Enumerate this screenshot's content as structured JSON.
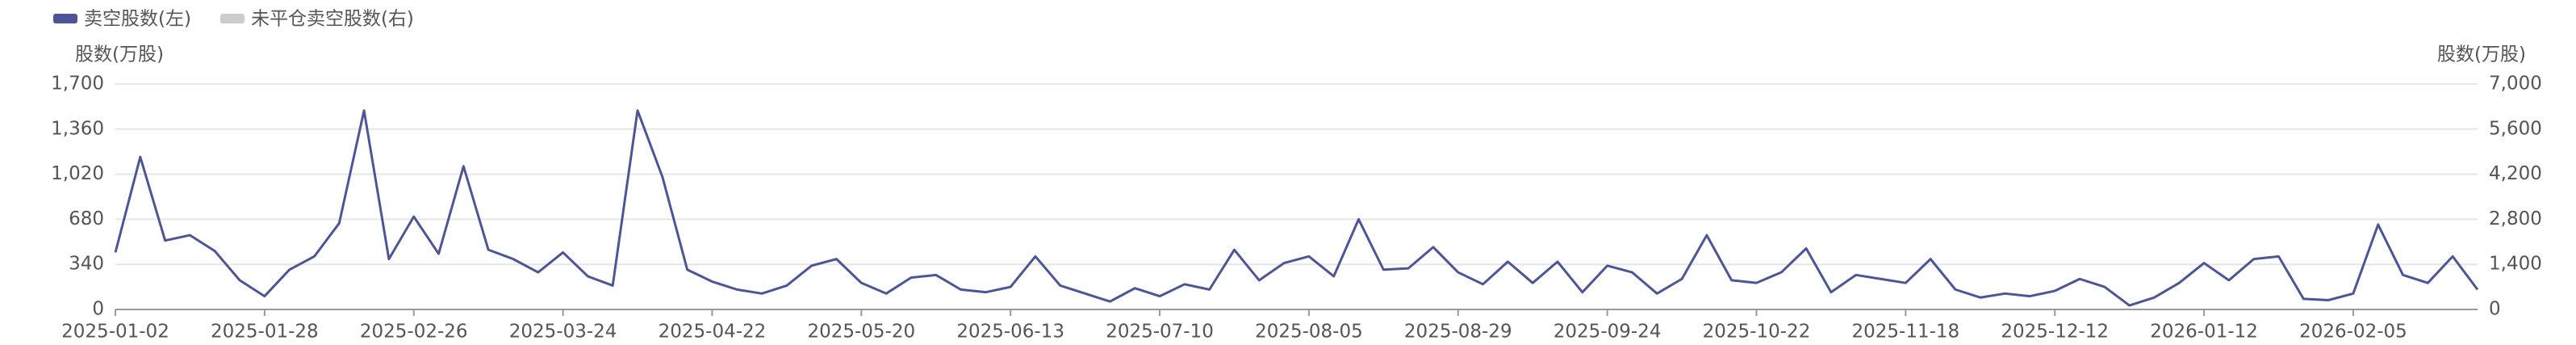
{
  "chart_data": {
    "type": "line",
    "series": [
      {
        "name": "卖空股数(左)",
        "color": "#4c5697",
        "values": [
          430,
          1150,
          520,
          560,
          440,
          220,
          100,
          300,
          400,
          650,
          1500,
          380,
          700,
          420,
          1080,
          450,
          380,
          280,
          430,
          250,
          180,
          1500,
          1000,
          300,
          210,
          150,
          120,
          180,
          330,
          380,
          200,
          120,
          240,
          260,
          150,
          130,
          170,
          400,
          180,
          120,
          60,
          160,
          100,
          190,
          150,
          450,
          220,
          350,
          400,
          250,
          680,
          300,
          310,
          470,
          280,
          190,
          360,
          200,
          360,
          130,
          330,
          280,
          120,
          230,
          560,
          220,
          200,
          280,
          460,
          130,
          260,
          230,
          200,
          380,
          150,
          90,
          120,
          100,
          140,
          230,
          170,
          30,
          90,
          200,
          350,
          220,
          380,
          400,
          80,
          70,
          120,
          640,
          260,
          200,
          400,
          150
        ]
      },
      {
        "name": "未平仓卖空股数(右)",
        "color": "#cccccc",
        "axis": "y2",
        "visible": false
      }
    ],
    "categories": [
      "2025-01-02",
      null,
      null,
      null,
      null,
      null,
      "2025-01-28",
      null,
      null,
      null,
      null,
      null,
      "2025-02-26",
      null,
      null,
      null,
      null,
      null,
      "2025-03-24",
      null,
      null,
      null,
      null,
      null,
      "2025-04-22",
      null,
      null,
      null,
      null,
      null,
      "2025-05-20",
      null,
      null,
      null,
      null,
      null,
      "2025-06-13",
      null,
      null,
      null,
      null,
      null,
      "2025-07-10",
      null,
      null,
      null,
      null,
      null,
      "2025-08-05",
      null,
      null,
      null,
      null,
      null,
      "2025-08-29",
      null,
      null,
      null,
      null,
      null,
      "2025-09-24",
      null,
      null,
      null,
      null,
      null,
      "2025-10-22",
      null,
      null,
      null,
      null,
      null,
      "2025-11-18",
      null,
      null,
      null,
      null,
      null,
      "2025-12-12",
      null,
      null,
      null,
      null,
      null,
      "2026-01-12",
      null,
      null,
      null,
      null,
      null,
      "2026-02-05",
      null,
      null,
      null,
      null,
      null
    ],
    "y_label": "股数(万股)",
    "y2_label": "股数(万股)",
    "ylim": [
      0,
      1700
    ],
    "yticks": [
      0,
      340,
      680,
      {
        "value": 1020,
        "label": "1,020"
      },
      {
        "value": 1360,
        "label": "1,360"
      },
      {
        "value": 1700,
        "label": "1,700"
      }
    ],
    "y2lim": [
      0,
      7000
    ],
    "y2ticks": [
      0,
      {
        "value": 1400,
        "label": "1,400"
      },
      {
        "value": 2800,
        "label": "2,800"
      },
      {
        "value": 4200,
        "label": "4,200"
      },
      {
        "value": 5600,
        "label": "5,600"
      },
      {
        "value": 7000,
        "label": "7,000"
      }
    ],
    "grid": true
  }
}
